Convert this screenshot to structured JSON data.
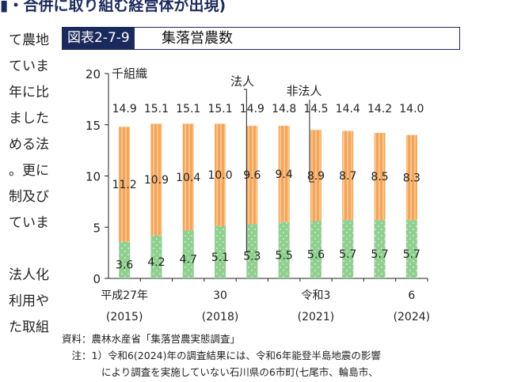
{
  "heading": "▮・合併に取り組む経営体が出現)",
  "left_text": [
    "て農地",
    "ていま",
    "年に比",
    "ました",
    "める法",
    "。更に",
    "制及び",
    "ていま",
    "",
    "法人化",
    "利用や",
    "た取組"
  ],
  "figure": {
    "label": "図表2-7-9",
    "name": "集落営農数"
  },
  "chart_data": {
    "type": "bar",
    "stacked": true,
    "ylabel": "千組織",
    "ylim": [
      0,
      20
    ],
    "yticks": [
      0,
      5,
      10,
      15,
      20
    ],
    "x_labels_top": [
      "平成27年",
      "",
      "",
      "30",
      "",
      "",
      "令和3",
      "",
      "",
      "6"
    ],
    "x_labels_bottom": [
      "(2015)",
      "",
      "",
      "(2018)",
      "",
      "",
      "(2021)",
      "",
      "",
      "(2024)"
    ],
    "series": [
      {
        "name": "法人",
        "color": "#8fcf8f",
        "values": [
          3.6,
          4.2,
          4.7,
          5.1,
          5.3,
          5.5,
          5.6,
          5.7,
          5.7,
          5.7
        ]
      },
      {
        "name": "非法人",
        "color": "#f5a55a",
        "values": [
          11.2,
          10.9,
          10.4,
          10.0,
          9.6,
          9.4,
          8.9,
          8.7,
          8.5,
          8.3
        ]
      }
    ],
    "totals": [
      14.9,
      15.1,
      15.1,
      15.1,
      14.9,
      14.8,
      14.5,
      14.4,
      14.2,
      14.0
    ]
  },
  "notes": [
    "資料：農林水産省「集落営農実態調査」",
    "　注：1）令和6(2024)年の調査結果には、令和6年能登半島地震の影響",
    "　　　　により調査を実施していない石川県の6市町(七尾市、輪島市、"
  ]
}
